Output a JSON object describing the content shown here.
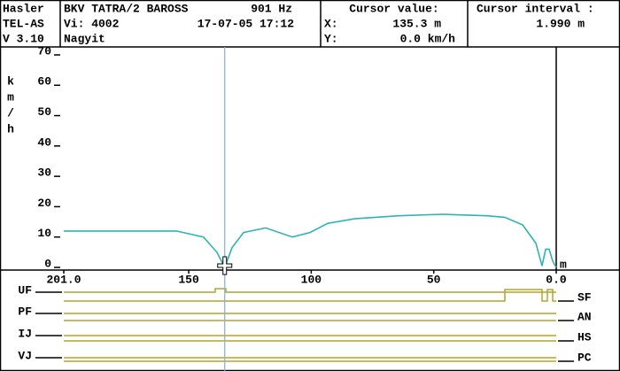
{
  "header": {
    "device": [
      "Hasler",
      "TEL-AS",
      "V 3.10"
    ],
    "title": "BKV TATRA/2 BAROSS",
    "frequency": "901 Hz",
    "vi": "Vi: 4002",
    "datetime": "17-07-05 17:12",
    "mode": "Nagyit",
    "cursor_value": {
      "title": "Cursor value:",
      "x_label": "X:",
      "x_value": "135.3 m",
      "y_label": "Y:",
      "y_value": "0.0 km/h"
    },
    "cursor_interval": {
      "title": "Cursor interval :",
      "value": "1.990 m"
    }
  },
  "signals": {
    "left": [
      "UF",
      "PF",
      "IJ",
      "VJ"
    ],
    "right": [
      "SF",
      "AN",
      "HS",
      "PC"
    ]
  },
  "chart_data": {
    "type": "line",
    "ylabel": [
      "k",
      "m",
      "/",
      "h"
    ],
    "xlabel": "m",
    "color": "#2fb3b3",
    "x": [
      201,
      155,
      144,
      138.5,
      135.3,
      132.3,
      127.6,
      118.6,
      107.7,
      100.5,
      93.3,
      82.4,
      64.3,
      46.3,
      28.2,
      21,
      13.7,
      8.3,
      5.8,
      4.3,
      2.9,
      1.4,
      0
    ],
    "values": [
      12,
      12,
      10,
      5,
      0,
      6.5,
      11.5,
      13,
      10,
      11.5,
      14.5,
      16,
      17,
      17.5,
      17,
      16.5,
      14,
      8,
      0.5,
      6,
      6,
      2,
      0
    ],
    "cursor_x": 135.3,
    "xlim": [
      201,
      0
    ],
    "xticks": [
      {
        "value": 201,
        "label": "201.0"
      },
      150,
      100,
      50,
      {
        "value": 0,
        "label": "0.0"
      }
    ],
    "ylim": [
      0,
      70
    ],
    "yticks": [
      0,
      10,
      20,
      30,
      40,
      50,
      60,
      70
    ]
  }
}
